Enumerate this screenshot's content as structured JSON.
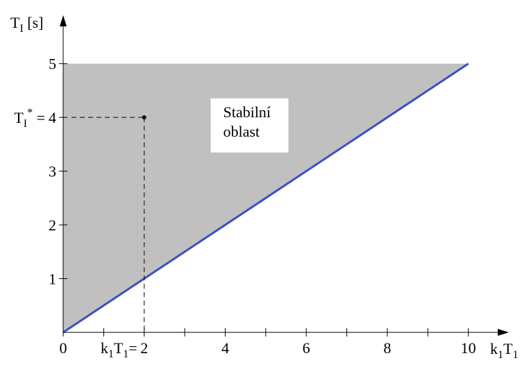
{
  "chart_data": {
    "type": "line",
    "x": [
      0,
      10
    ],
    "series": [
      {
        "color": "#3a4fc4",
        "values": [
          0,
          5
        ]
      }
    ],
    "region": {
      "color": "#c0c0c0",
      "top": 5
    },
    "xlim": [
      0,
      11
    ],
    "ylim": [
      0,
      5.9
    ],
    "xticks": [
      0,
      2,
      4,
      6,
      8,
      10
    ],
    "xminor_ticks": [
      1,
      3,
      5,
      7,
      9
    ],
    "yticks": [
      1,
      2,
      3,
      4,
      5
    ],
    "xlabel": [
      {
        "t": "k"
      },
      {
        "t": "1",
        "sub": true
      },
      {
        "t": "T"
      },
      {
        "t": "1",
        "sub": true
      }
    ],
    "ylabel": [
      {
        "t": "T"
      },
      {
        "t": "I",
        "sub": true
      },
      {
        "t": " [s]"
      }
    ],
    "marker": {
      "x": 2,
      "y": 4,
      "x_prefix": [
        {
          "t": "k"
        },
        {
          "t": "1",
          "sub": true
        },
        {
          "t": "T"
        },
        {
          "t": "1",
          "sub": true
        },
        {
          "t": "="
        }
      ],
      "y_prefix": [
        {
          "t": "T"
        },
        {
          "t": "I",
          "sub": true
        },
        {
          "t": "*",
          "sup": true
        },
        {
          "t": " ="
        }
      ]
    },
    "annotation": {
      "lines": [
        "Stabilní",
        "oblast"
      ],
      "x": 4.6,
      "y": 3.85
    }
  }
}
